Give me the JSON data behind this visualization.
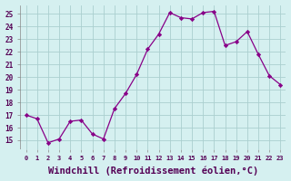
{
  "x": [
    0,
    1,
    2,
    3,
    4,
    5,
    6,
    7,
    8,
    9,
    10,
    11,
    12,
    13,
    14,
    15,
    16,
    17,
    18,
    19,
    20,
    21,
    22,
    23
  ],
  "y": [
    17.0,
    16.7,
    14.8,
    15.1,
    16.5,
    16.6,
    15.5,
    15.1,
    17.5,
    18.7,
    20.2,
    22.2,
    23.4,
    25.1,
    24.7,
    24.6,
    25.1,
    25.2,
    22.5,
    22.8,
    23.6,
    21.8,
    20.1,
    19.4
  ],
  "line_color": "#880088",
  "marker": "D",
  "marker_size": 2.2,
  "bg_color": "#d5f0f0",
  "grid_color": "#aacfcf",
  "xlabel": "Windchill (Refroidissement éolien,°C)",
  "xlabel_fontsize": 7.5,
  "ylabel_ticks": [
    15,
    16,
    17,
    18,
    19,
    20,
    21,
    22,
    23,
    24,
    25
  ],
  "xlim": [
    -0.5,
    23.5
  ],
  "ylim": [
    14.3,
    25.7
  ],
  "xtick_labels": [
    "0",
    "1",
    "2",
    "3",
    "4",
    "5",
    "6",
    "7",
    "8",
    "9",
    "10",
    "11",
    "12",
    "13",
    "14",
    "15",
    "16",
    "17",
    "18",
    "19",
    "20",
    "21",
    "22",
    "23"
  ]
}
